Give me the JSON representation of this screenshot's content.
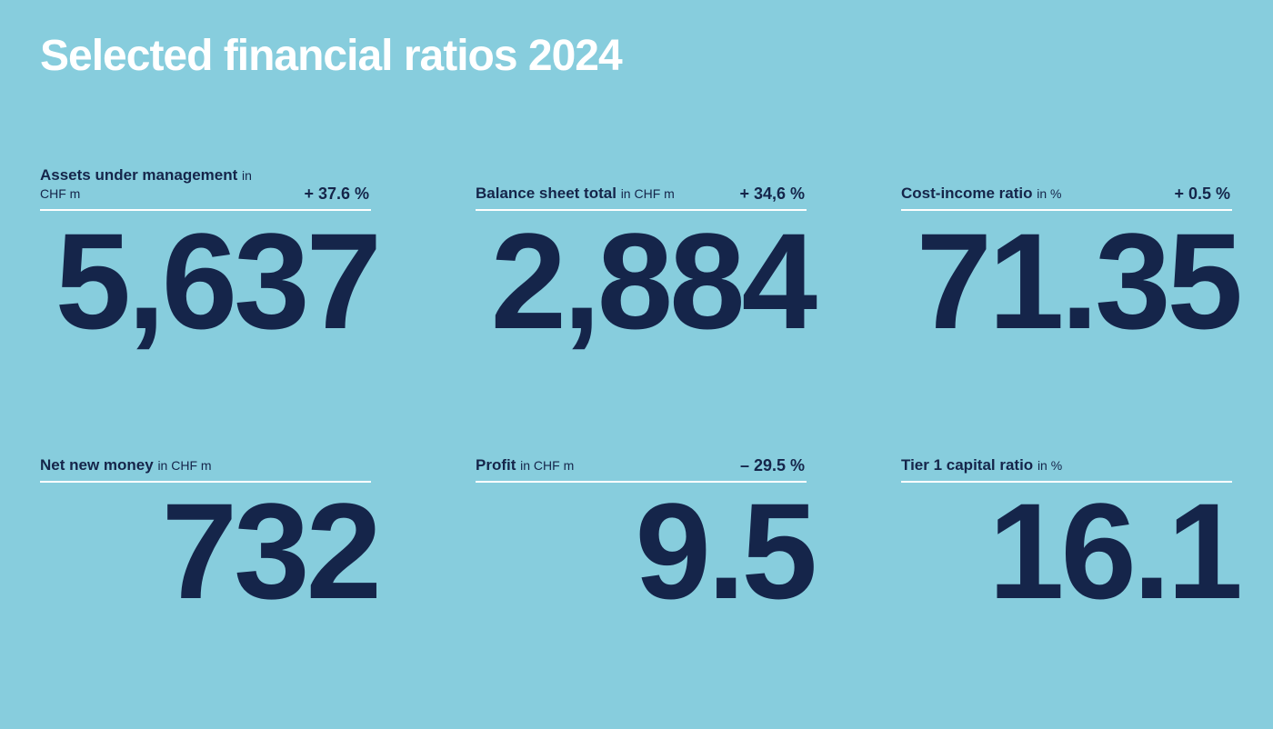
{
  "title": "Selected financial ratios 2024",
  "metrics": [
    {
      "label": "Assets under management",
      "unit": "in CHF m",
      "change": "+ 37.6 %",
      "value": "5,637"
    },
    {
      "label": "Balance sheet total",
      "unit": "in CHF m",
      "change": "+ 34,6 %",
      "value": "2,884"
    },
    {
      "label": "Cost-income ratio",
      "unit": "in %",
      "change": "+ 0.5 %",
      "value": "71.35"
    },
    {
      "label": "Net new money",
      "unit": "in CHF m",
      "change": "",
      "value": "732"
    },
    {
      "label": "Profit",
      "unit": "in CHF m",
      "change": "– 29.5 %",
      "value": "9.5"
    },
    {
      "label": "Tier 1 capital ratio",
      "unit": "in %",
      "change": "",
      "value": "16.1"
    }
  ],
  "colors": {
    "background": "#87CDDD",
    "text": "#15254A",
    "title": "#FFFFFF"
  }
}
